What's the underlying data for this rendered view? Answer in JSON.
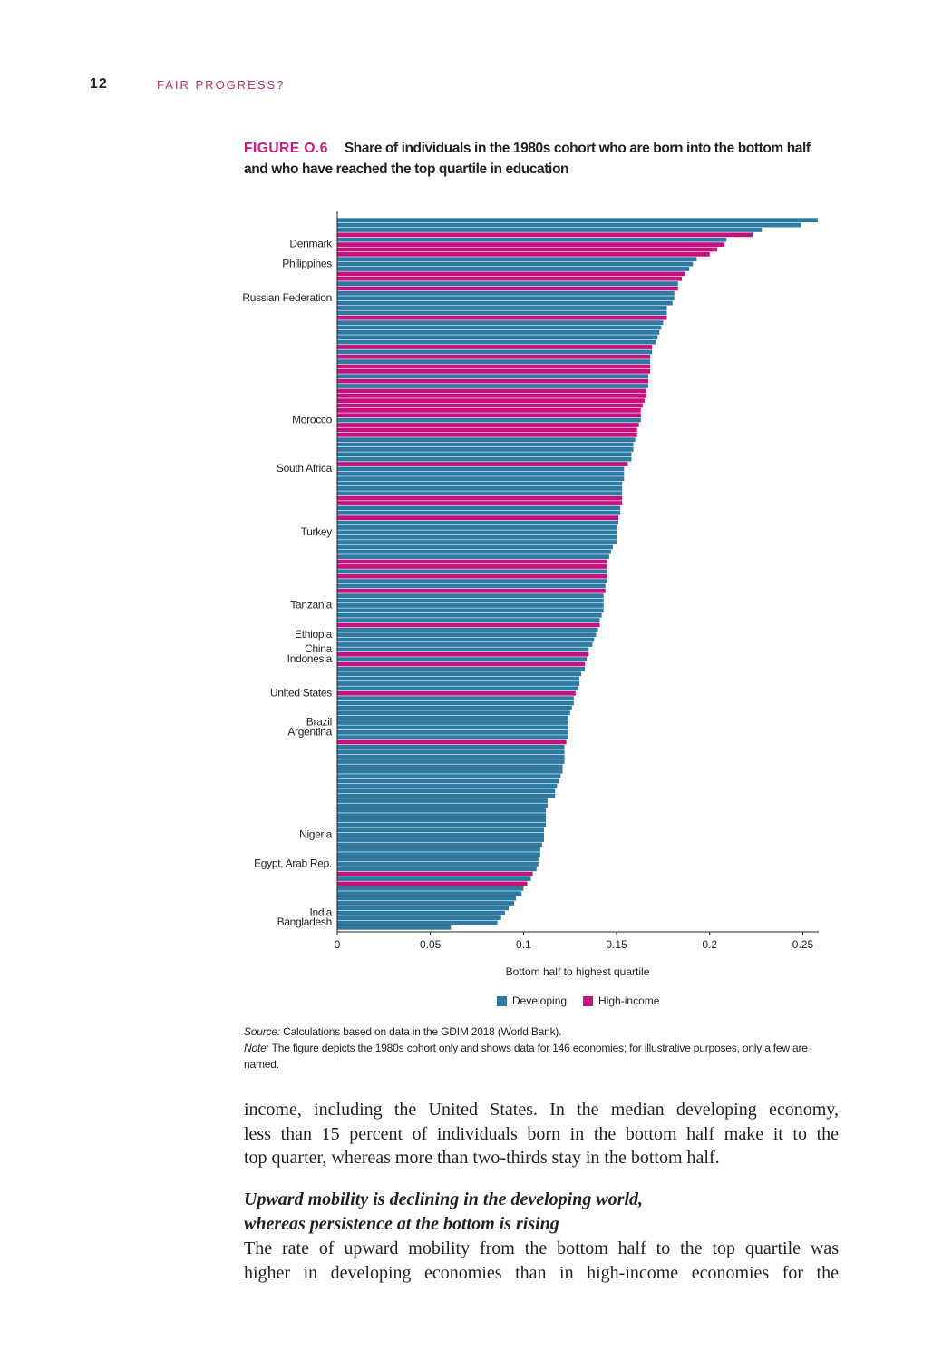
{
  "header": {
    "page_number": "12",
    "running_title": "FAIR PROGRESS?"
  },
  "figure": {
    "label": "FIGURE O.6"
  },
  "chart_data": {
    "type": "bar",
    "orientation": "horizontal",
    "title": "Share of individuals in the 1980s cohort who are born into the bottom half and who have reached the top quartile in education",
    "x_label": "Bottom half to highest quartile",
    "xlim": [
      0,
      0.26
    ],
    "xticks": [
      0,
      0.05,
      0.1,
      0.15,
      0.2,
      0.25
    ],
    "categories": [
      null,
      null,
      null,
      null,
      null,
      "Denmark",
      null,
      null,
      null,
      "Philippines",
      null,
      null,
      null,
      null,
      null,
      null,
      "Russian Federation",
      null,
      null,
      null,
      null,
      null,
      null,
      null,
      null,
      null,
      null,
      null,
      null,
      null,
      null,
      null,
      null,
      null,
      null,
      null,
      null,
      null,
      null,
      null,
      null,
      "Morocco",
      null,
      null,
      null,
      null,
      null,
      null,
      null,
      null,
      null,
      "South Africa",
      null,
      null,
      null,
      null,
      null,
      null,
      null,
      null,
      null,
      null,
      null,
      null,
      "Turkey",
      null,
      null,
      null,
      null,
      null,
      null,
      null,
      null,
      null,
      null,
      null,
      null,
      null,
      null,
      "Tanzania",
      null,
      null,
      null,
      null,
      null,
      "Ethiopia",
      null,
      null,
      "China",
      null,
      "Indonesia",
      null,
      null,
      null,
      null,
      null,
      null,
      "United States",
      null,
      null,
      null,
      null,
      null,
      "Brazil",
      null,
      "Argentina",
      null,
      null,
      null,
      null,
      null,
      null,
      null,
      null,
      null,
      null,
      null,
      null,
      null,
      null,
      null,
      null,
      null,
      null,
      null,
      null,
      "Nigeria",
      null,
      null,
      null,
      null,
      null,
      "Egypt, Arab Rep.",
      null,
      null,
      null,
      null,
      null,
      null,
      null,
      null,
      null,
      "India",
      null,
      "Bangladesh",
      null
    ],
    "series": [
      {
        "name": "Developing",
        "color": "#2e7aa3",
        "values": [
          0.258,
          0.249,
          0.228,
          null,
          0.209,
          null,
          null,
          null,
          0.193,
          0.191,
          0.189,
          null,
          null,
          0.183,
          null,
          0.181,
          0.181,
          0.18,
          0.177,
          0.177,
          null,
          0.175,
          0.174,
          0.173,
          0.172,
          0.171,
          null,
          0.169,
          null,
          0.168,
          null,
          null,
          0.167,
          null,
          0.167,
          null,
          null,
          null,
          null,
          null,
          null,
          0.163,
          null,
          null,
          null,
          0.16,
          0.159,
          0.159,
          0.158,
          0.158,
          null,
          0.154,
          0.154,
          0.154,
          0.153,
          0.153,
          0.153,
          null,
          null,
          0.152,
          0.152,
          null,
          0.151,
          0.15,
          0.15,
          0.15,
          0.15,
          0.148,
          0.147,
          0.146,
          null,
          null,
          0.145,
          null,
          0.145,
          0.144,
          null,
          0.143,
          0.143,
          0.143,
          0.143,
          0.142,
          0.141,
          null,
          0.14,
          0.139,
          0.138,
          0.137,
          0.135,
          null,
          0.134,
          null,
          0.133,
          0.131,
          0.13,
          0.13,
          0.129,
          null,
          0.127,
          0.127,
          0.126,
          0.125,
          0.124,
          0.124,
          0.124,
          0.124,
          0.124,
          null,
          0.122,
          0.122,
          0.122,
          0.122,
          0.121,
          0.121,
          0.12,
          0.119,
          0.118,
          0.117,
          0.117,
          0.113,
          0.113,
          0.112,
          0.112,
          0.112,
          0.112,
          0.111,
          0.111,
          0.111,
          0.11,
          0.109,
          0.109,
          0.108,
          0.108,
          0.107,
          null,
          0.104,
          null,
          0.1,
          0.099,
          0.096,
          0.095,
          0.092,
          0.09,
          0.088,
          0.086,
          0.061
        ]
      },
      {
        "name": "High-income",
        "color": "#c4137c",
        "values": [
          null,
          null,
          null,
          0.223,
          null,
          0.208,
          0.204,
          0.2,
          null,
          null,
          null,
          0.187,
          0.185,
          null,
          0.183,
          null,
          null,
          null,
          null,
          null,
          0.177,
          null,
          null,
          null,
          null,
          null,
          0.169,
          null,
          0.168,
          null,
          0.168,
          0.168,
          null,
          0.167,
          null,
          0.166,
          0.166,
          0.165,
          0.164,
          0.163,
          0.163,
          null,
          0.162,
          0.161,
          0.161,
          null,
          null,
          null,
          null,
          null,
          0.156,
          null,
          null,
          null,
          null,
          null,
          null,
          0.153,
          0.153,
          null,
          null,
          0.151,
          null,
          null,
          null,
          null,
          null,
          null,
          null,
          null,
          0.145,
          0.145,
          null,
          0.145,
          null,
          null,
          0.144,
          null,
          null,
          null,
          null,
          null,
          null,
          0.141,
          null,
          null,
          null,
          null,
          null,
          0.135,
          null,
          0.133,
          null,
          null,
          null,
          null,
          null,
          0.128,
          null,
          null,
          null,
          null,
          null,
          null,
          null,
          null,
          null,
          0.123,
          null,
          null,
          null,
          null,
          null,
          null,
          null,
          null,
          null,
          null,
          null,
          null,
          null,
          null,
          null,
          null,
          null,
          null,
          null,
          null,
          null,
          null,
          null,
          null,
          null,
          null,
          0.105,
          null,
          0.102,
          null,
          null,
          null,
          null,
          null,
          null,
          null,
          null,
          null
        ]
      }
    ]
  },
  "source": {
    "label": "Source:",
    "text": " Calculations based on data in the GDIM 2018 (World Bank)."
  },
  "note": {
    "label": "Note:",
    "text": " The figure depicts the 1980s cohort only and shows data for 146 economies; for illustrative purposes, only a few are named."
  },
  "body": {
    "paragraph_1": [
      "income, including the United States. In the median developing economy,",
      "less than 15 percent of individuals born in the bottom half make it to the",
      "top quarter, whereas more than two-thirds stay in the bottom half."
    ],
    "heading": [
      "Upward mobility is declining in the developing world,",
      "whereas persistence at the bottom is rising"
    ],
    "paragraph_2": [
      "The rate of upward mobility from the bottom half to the top quartile was",
      "higher in developing economies than in high-income economies for the"
    ]
  }
}
